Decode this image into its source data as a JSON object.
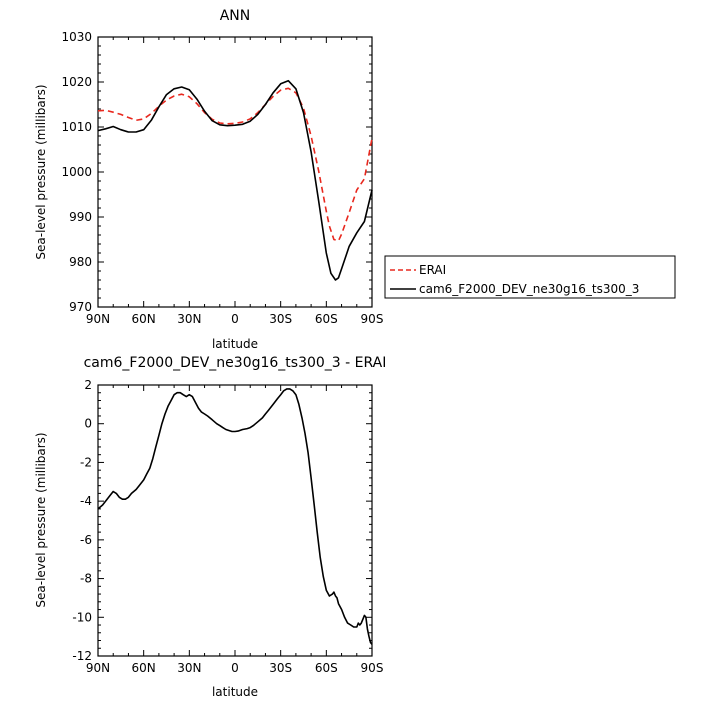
{
  "chart_data": [
    {
      "type": "line",
      "title": "ANN",
      "xlabel": "latitude",
      "ylabel": "Sea-level pressure (millibars)",
      "xlim": [
        90,
        -90
      ],
      "ylim": [
        970,
        1030
      ],
      "xticks": [
        90,
        60,
        30,
        0,
        -30,
        -60,
        -90
      ],
      "xtick_labels": [
        "90N",
        "60N",
        "30N",
        "0",
        "30S",
        "60S",
        "90S"
      ],
      "yticks": [
        970,
        980,
        990,
        1000,
        1010,
        1020,
        1030
      ],
      "ytick_labels": [
        "970",
        "980",
        "990",
        "1000",
        "1010",
        "1020",
        "1030"
      ],
      "legend_position": "right, outside plot",
      "grid": false,
      "series": [
        {
          "name": "ERAI",
          "color": "#e8281e",
          "dash": "dashed",
          "x": [
            90,
            85,
            80,
            75,
            70,
            65,
            60,
            55,
            50,
            45,
            40,
            35,
            30,
            25,
            20,
            15,
            10,
            5,
            0,
            -5,
            -10,
            -15,
            -20,
            -25,
            -30,
            -35,
            -40,
            -45,
            -50,
            -55,
            -60,
            -62,
            -65,
            -68,
            -70,
            -75,
            -80,
            -85,
            -90
          ],
          "y": [
            1013.6,
            1013.7,
            1013.3,
            1012.8,
            1012.1,
            1011.5,
            1011.8,
            1013.0,
            1014.6,
            1016.0,
            1016.9,
            1017.3,
            1016.7,
            1015.2,
            1013.2,
            1011.7,
            1010.9,
            1010.7,
            1010.8,
            1011.1,
            1011.8,
            1013.2,
            1015.0,
            1016.8,
            1018.2,
            1018.6,
            1017.6,
            1014.2,
            1008.0,
            1000.2,
            991.3,
            988.0,
            985.0,
            984.7,
            986.2,
            991.0,
            996.0,
            998.5,
            1007.5
          ]
        },
        {
          "name": "cam6_F2000_DEV_ne30g16_ts300_3",
          "color": "#000000",
          "dash": "solid",
          "x": [
            90,
            85,
            80,
            75,
            70,
            65,
            60,
            55,
            50,
            45,
            40,
            35,
            30,
            25,
            20,
            15,
            10,
            5,
            0,
            -5,
            -10,
            -15,
            -20,
            -25,
            -30,
            -35,
            -40,
            -45,
            -50,
            -55,
            -60,
            -63,
            -66,
            -68,
            -70,
            -75,
            -80,
            -85,
            -90
          ],
          "y": [
            1009.2,
            1009.6,
            1010.1,
            1009.4,
            1008.9,
            1008.9,
            1009.4,
            1011.5,
            1014.5,
            1017.2,
            1018.5,
            1018.9,
            1018.3,
            1016.2,
            1013.5,
            1011.4,
            1010.5,
            1010.3,
            1010.4,
            1010.6,
            1011.3,
            1012.8,
            1015.0,
            1017.6,
            1019.6,
            1020.3,
            1018.5,
            1013.2,
            1004.5,
            993.5,
            982.0,
            977.5,
            976.0,
            976.5,
            978.5,
            983.5,
            986.5,
            989.0,
            996.0
          ]
        }
      ]
    },
    {
      "type": "line",
      "title": "cam6_F2000_DEV_ne30g16_ts300_3 - ERAI",
      "xlabel": "latitude",
      "ylabel": "Sea-level pressure (millibars)",
      "xlim": [
        90,
        -90
      ],
      "ylim": [
        -12,
        2
      ],
      "xticks": [
        90,
        60,
        30,
        0,
        -30,
        -60,
        -90
      ],
      "xtick_labels": [
        "90N",
        "60N",
        "30N",
        "0",
        "30S",
        "60S",
        "90S"
      ],
      "yticks": [
        -12,
        -10,
        -8,
        -6,
        -4,
        -2,
        0,
        2
      ],
      "ytick_labels": [
        "-12",
        "-10",
        "-8",
        "-6",
        "-4",
        "-2",
        "0",
        "2"
      ],
      "grid": false,
      "series": [
        {
          "color": "#000000",
          "dash": "solid",
          "x": [
            90,
            87,
            84,
            82,
            80,
            78,
            76,
            74,
            72,
            70,
            68,
            65,
            63,
            60,
            58,
            56,
            54,
            52,
            50,
            48,
            46,
            44,
            42,
            40,
            38,
            36,
            34,
            32,
            30,
            28,
            26,
            24,
            22,
            20,
            18,
            15,
            12,
            10,
            8,
            6,
            4,
            2,
            0,
            -2,
            -5,
            -8,
            -10,
            -12,
            -15,
            -18,
            -20,
            -22,
            -25,
            -28,
            -30,
            -32,
            -34,
            -36,
            -38,
            -40,
            -42,
            -44,
            -46,
            -48,
            -50,
            -52,
            -54,
            -56,
            -58,
            -60,
            -62,
            -64,
            -65,
            -66,
            -67,
            -68,
            -70,
            -72,
            -74,
            -76,
            -78,
            -80,
            -81,
            -82,
            -83,
            -84,
            -85,
            -86,
            -87,
            -88,
            -89,
            -90
          ],
          "y": [
            -4.4,
            -4.2,
            -3.9,
            -3.7,
            -3.5,
            -3.6,
            -3.8,
            -3.9,
            -3.9,
            -3.8,
            -3.6,
            -3.4,
            -3.2,
            -2.9,
            -2.6,
            -2.3,
            -1.8,
            -1.2,
            -0.6,
            0.0,
            0.5,
            0.9,
            1.2,
            1.5,
            1.6,
            1.6,
            1.5,
            1.4,
            1.5,
            1.4,
            1.1,
            0.8,
            0.6,
            0.5,
            0.4,
            0.2,
            0.0,
            -0.1,
            -0.2,
            -0.3,
            -0.35,
            -0.4,
            -0.4,
            -0.38,
            -0.3,
            -0.25,
            -0.2,
            -0.1,
            0.1,
            0.3,
            0.5,
            0.7,
            1.0,
            1.3,
            1.5,
            1.7,
            1.8,
            1.8,
            1.7,
            1.5,
            1.0,
            0.3,
            -0.5,
            -1.5,
            -2.8,
            -4.2,
            -5.6,
            -6.9,
            -7.9,
            -8.6,
            -8.9,
            -8.8,
            -8.7,
            -8.9,
            -9.0,
            -9.3,
            -9.6,
            -10.0,
            -10.3,
            -10.4,
            -10.5,
            -10.5,
            -10.3,
            -10.4,
            -10.3,
            -10.1,
            -9.9,
            -10.0,
            -10.6,
            -11.0,
            -11.3,
            -11.4
          ]
        }
      ]
    }
  ]
}
